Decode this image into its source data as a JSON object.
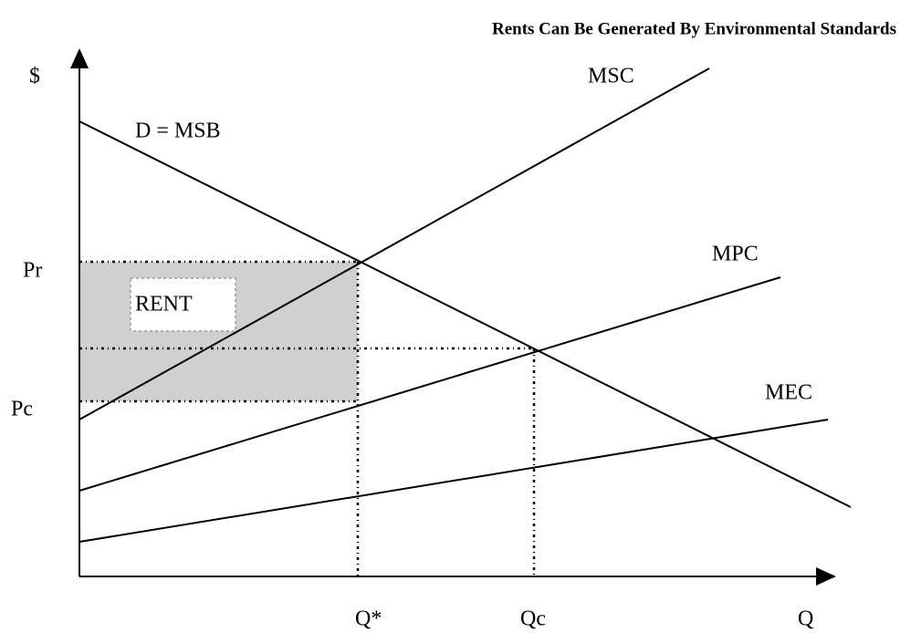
{
  "title": "Rents Can Be Generated By Environmental Standards",
  "axes": {
    "y_label": "$",
    "x_label": "Q"
  },
  "curves": {
    "demand": "D = MSB",
    "msc": "MSC",
    "mpc": "MPC",
    "mec": "MEC"
  },
  "prices": {
    "pr": "Pr",
    "pc": "Pc"
  },
  "quantities": {
    "q_star": "Q*",
    "qc": "Qc"
  },
  "area": "RENT"
}
